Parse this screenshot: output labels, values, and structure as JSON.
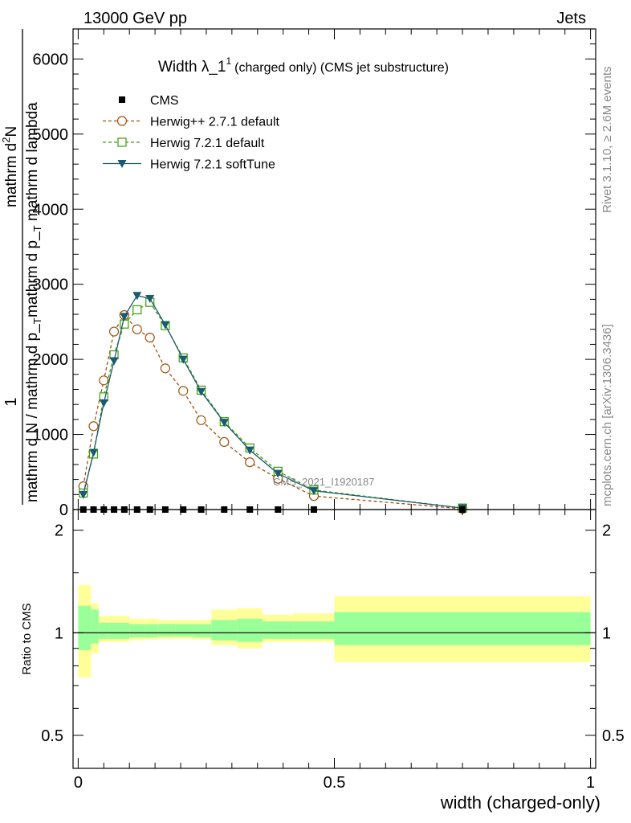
{
  "header": {
    "energy_label": "13000 GeV pp",
    "process_label": "Jets"
  },
  "side_labels": {
    "rivet": "Rivet 3.1.10, ≥ 2.6M events",
    "mcplots": "mcplots.cern.ch [arXiv:1306.3436]"
  },
  "main_plot": {
    "title": "Width λ_1",
    "title_sup": "1",
    "title_suffix": "(charged only) (CMS jet substructure)",
    "ylabel_fraction_top": "1",
    "ylabel_one_line": "mathrm d N / mathrm d p_",
    "ylabel_one_line_sub": "T",
    "ylabel_top": "mathrm d",
    "ylabel_top_sup": "2",
    "ylabel_top_end": "N",
    "ylabel_bottom": "mathrm d p_",
    "ylabel_bottom_sub": "T",
    "ylabel_bottom_end": " mathrm d lambda",
    "watermark": "CMS_2021_I1920187",
    "ylim": [
      0,
      6400
    ],
    "yticks": [
      0,
      1000,
      2000,
      3000,
      4000,
      5000,
      6000
    ],
    "ytick_labels": [
      "0",
      "1000",
      "2000",
      "3000",
      "4000",
      "5000",
      "6000"
    ]
  },
  "ratio_plot": {
    "ylabel": "Ratio to CMS",
    "ylim": [
      0.4,
      2.3
    ],
    "ytick_labels": [
      "0.5",
      "1",
      "2"
    ],
    "yticks": [
      0.5,
      1,
      2
    ]
  },
  "xaxis": {
    "label": "width (charged-only)",
    "xlim": [
      -0.01,
      1.01
    ],
    "xticks": [
      0,
      0.5,
      1
    ],
    "xtick_labels": [
      "0",
      "0.5",
      "1"
    ]
  },
  "legend": [
    {
      "name": "CMS",
      "color": "#000000",
      "marker": "filled-square"
    },
    {
      "name": "Herwig++ 2.7.1 default",
      "color": "#a0520f",
      "marker": "open-circle"
    },
    {
      "name": "Herwig 7.2.1 default",
      "color": "#3c9c0a",
      "marker": "open-square"
    },
    {
      "name": "Herwig 7.2.1 softTune",
      "color": "#1c5a6e",
      "marker": "filled-triangle-down"
    }
  ],
  "chart_data": {
    "type": "line",
    "x": [
      0.01,
      0.03,
      0.05,
      0.07,
      0.09,
      0.115,
      0.14,
      0.17,
      0.205,
      0.24,
      0.285,
      0.335,
      0.39,
      0.46,
      0.75
    ],
    "series": [
      {
        "name": "CMS",
        "values": [
          0,
          0,
          0,
          0,
          0,
          0,
          0,
          0,
          0,
          0,
          0,
          0,
          0,
          0,
          0
        ]
      },
      {
        "name": "Herwig++ 2.7.1 default",
        "values": [
          310,
          1110,
          1720,
          2370,
          2590,
          2400,
          2290,
          1880,
          1580,
          1190,
          900,
          630,
          410,
          180,
          10
        ]
      },
      {
        "name": "Herwig 7.2.1 default",
        "values": [
          220,
          740,
          1500,
          2060,
          2470,
          2660,
          2760,
          2450,
          2020,
          1590,
          1170,
          820,
          510,
          260,
          20
        ]
      },
      {
        "name": "Herwig 7.2.1 softTune",
        "values": [
          200,
          760,
          1420,
          1980,
          2570,
          2850,
          2810,
          2460,
          2000,
          1570,
          1160,
          790,
          480,
          250,
          20
        ]
      }
    ],
    "ratio_band": {
      "edges": [
        0.0,
        0.025,
        0.04,
        0.06,
        0.1,
        0.13,
        0.155,
        0.19,
        0.225,
        0.26,
        0.31,
        0.36,
        0.42,
        0.5,
        1.0
      ],
      "inner_lo": [
        0.89,
        0.93,
        0.96,
        0.96,
        0.97,
        0.97,
        0.975,
        0.975,
        0.97,
        0.95,
        0.94,
        0.96,
        0.96,
        0.92
      ],
      "inner_hi": [
        1.2,
        1.17,
        1.07,
        1.07,
        1.06,
        1.06,
        1.06,
        1.06,
        1.06,
        1.09,
        1.1,
        1.08,
        1.08,
        1.15
      ],
      "outer_lo": [
        0.74,
        0.87,
        0.94,
        0.94,
        0.95,
        0.955,
        0.96,
        0.96,
        0.955,
        0.92,
        0.9,
        0.94,
        0.94,
        0.82
      ],
      "outer_hi": [
        1.38,
        1.22,
        1.12,
        1.12,
        1.1,
        1.1,
        1.09,
        1.09,
        1.09,
        1.17,
        1.18,
        1.13,
        1.14,
        1.28
      ],
      "inner_color": "#99ff99",
      "outer_color": "#ffff99",
      "reference": 1.0
    }
  }
}
